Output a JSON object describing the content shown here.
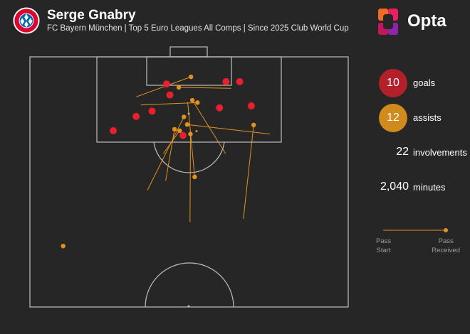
{
  "header": {
    "title": "Serge Gnabry",
    "subtitle": "FC Bayern München | Top 5 Euro Leagues All Comps | Since 2025 Club World Cup",
    "brand": "Opta",
    "logo_text": "FC BAYERN MÜNCHEN"
  },
  "colors": {
    "goal": "#e8202e",
    "assist": "#e3931d",
    "goal_circle": "#b3202a",
    "assist_circle": "#d18a1c",
    "pitch_line": "#bfbfbf",
    "background": "#262626"
  },
  "stats": {
    "goals": {
      "value": "10",
      "label": "goals"
    },
    "assists": {
      "value": "12",
      "label": "assists"
    },
    "involvements": {
      "value": "22",
      "label": "involvements"
    },
    "minutes": {
      "value": "2,040",
      "label": "minutes"
    }
  },
  "legend": {
    "start_label_1": "Pass",
    "start_label_2": "Start",
    "end_label_1": "Pass",
    "end_label_2": "Received"
  },
  "chart_data": {
    "type": "scatter",
    "pitch_half_width": 68,
    "pitch_half_length": 52.5,
    "goals": [
      {
        "x": 29.2,
        "y": 5.7
      },
      {
        "x": 41.9,
        "y": 5.2
      },
      {
        "x": 44.8,
        "y": 5.2
      },
      {
        "x": 29.9,
        "y": 8.0
      },
      {
        "x": 40.5,
        "y": 10.7
      },
      {
        "x": 47.3,
        "y": 10.3
      },
      {
        "x": 26.1,
        "y": 11.4
      },
      {
        "x": 22.7,
        "y": 12.5
      },
      {
        "x": 32.7,
        "y": 16.5
      },
      {
        "x": 17.8,
        "y": 15.5
      }
    ],
    "assists": [
      {
        "from": {
          "x": 22.7,
          "y": 8.4
        },
        "to": {
          "x": 34.4,
          "y": 4.2
        }
      },
      {
        "from": {
          "x": 43.0,
          "y": 6.6
        },
        "to": {
          "x": 31.8,
          "y": 6.4
        }
      },
      {
        "from": {
          "x": 41.8,
          "y": 20.3
        },
        "to": {
          "x": 34.7,
          "y": 9.1
        }
      },
      {
        "from": {
          "x": 23.7,
          "y": 10.1
        },
        "to": {
          "x": 35.8,
          "y": 9.6
        }
      },
      {
        "from": {
          "x": 25.1,
          "y": 28.0
        },
        "to": {
          "x": 32.9,
          "y": 12.6
        }
      },
      {
        "from": {
          "x": 51.3,
          "y": 16.2
        },
        "to": {
          "x": 33.6,
          "y": 14.2
        }
      },
      {
        "from": {
          "x": 29.0,
          "y": 26.0
        },
        "to": {
          "x": 30.9,
          "y": 15.2
        }
      },
      {
        "from": {
          "x": 45.6,
          "y": 34.0
        },
        "to": {
          "x": 47.8,
          "y": 14.3
        }
      },
      {
        "from": {
          "x": 34.2,
          "y": 34.7
        },
        "to": {
          "x": 34.3,
          "y": 16.2
        }
      },
      {
        "from": {
          "x": 28.5,
          "y": 20.3
        },
        "to": {
          "x": 32.0,
          "y": 15.5
        }
      },
      {
        "from": {
          "x": 33.7,
          "y": 9.5
        },
        "to": {
          "x": 35.2,
          "y": 25.2
        }
      },
      {
        "from": {
          "x": 7.1,
          "y": 39.7
        },
        "to": {
          "x": 7.1,
          "y": 39.7
        }
      }
    ],
    "extra_points": [
      {
        "x": 35.6,
        "y": 15.6
      }
    ]
  }
}
